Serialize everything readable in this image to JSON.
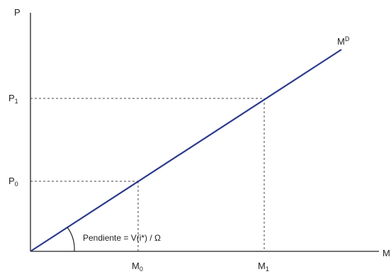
{
  "axes": {
    "y_label": "P",
    "x_label": "M",
    "y_ticks": [
      {
        "main": "P",
        "sub": "1"
      },
      {
        "main": "P",
        "sub": "0"
      }
    ],
    "x_ticks": [
      {
        "main": "M",
        "sub": "0"
      },
      {
        "main": "M",
        "sub": "1"
      }
    ]
  },
  "curve": {
    "label_main": "M",
    "label_sup": "D",
    "color": "#2b3a8c"
  },
  "slope_annotation": "Pendiente = V(i*) / Ω"
}
